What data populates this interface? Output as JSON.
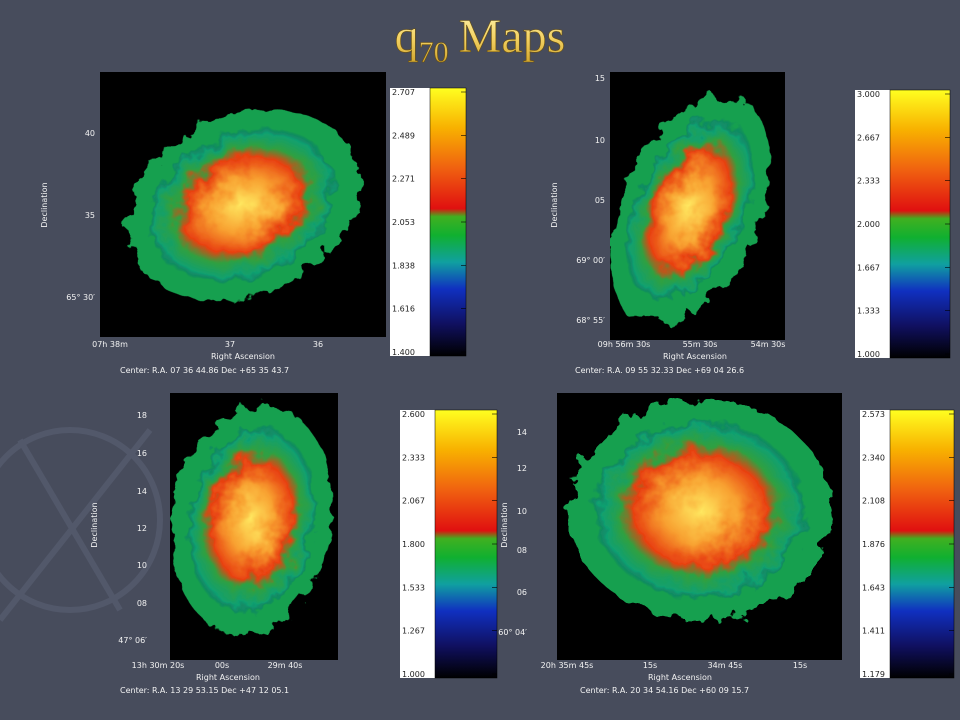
{
  "title": {
    "main": "q",
    "subscript": "70",
    "rest": "Maps"
  },
  "panels": [
    {
      "y_axis_title": "Declination",
      "x_axis_title": "Right Ascension",
      "y_labels": [
        "40",
        "35",
        "65° 30′"
      ],
      "x_labels": [
        "07h 38m",
        "37",
        "36"
      ],
      "center": "Center:  R.A. 07 36 44.86    Dec  +65 35 43.7",
      "colorbar_labels": [
        "2.707",
        "2.489",
        "2.271",
        "2.053",
        "1.838",
        "1.616",
        "1.400"
      ]
    },
    {
      "y_axis_title": "Declination",
      "x_axis_title": "Right Ascension",
      "y_labels": [
        "15",
        "10",
        "05",
        "69° 00′",
        "68° 55′"
      ],
      "x_labels": [
        "09h 56m 30s",
        "55m 30s",
        "54m 30s"
      ],
      "center": "Center:  R.A. 09 55 32.33    Dec  +69 04 26.6",
      "colorbar_labels": [
        "3.000",
        "2.667",
        "2.333",
        "2.000",
        "1.667",
        "1.333",
        "1.000"
      ]
    },
    {
      "y_axis_title": "Declination",
      "x_axis_title": "Right Ascension",
      "y_labels": [
        "18",
        "16",
        "14",
        "12",
        "10",
        "08",
        "47° 06′"
      ],
      "x_labels": [
        "13h 30m 20s",
        "00s",
        "29m 40s"
      ],
      "center": "Center:  R.A. 13 29 53.15    Dec  +47 12 05.1",
      "colorbar_labels": [
        "2.600",
        "2.333",
        "2.067",
        "1.800",
        "1.533",
        "1.267",
        "1.000"
      ]
    },
    {
      "y_axis_title": "Declination",
      "x_axis_title": "Right Ascension",
      "y_labels": [
        "14",
        "12",
        "10",
        "08",
        "06",
        "60° 04′"
      ],
      "x_labels": [
        "20h 35m 45s",
        "15s",
        "34m 45s",
        "15s"
      ],
      "center": "Center:  R.A. 20 34 54.16    Dec  +60 09 15.7",
      "colorbar_labels": [
        "2.573",
        "2.340",
        "2.108",
        "1.876",
        "1.643",
        "1.411",
        "1.179"
      ]
    }
  ]
}
